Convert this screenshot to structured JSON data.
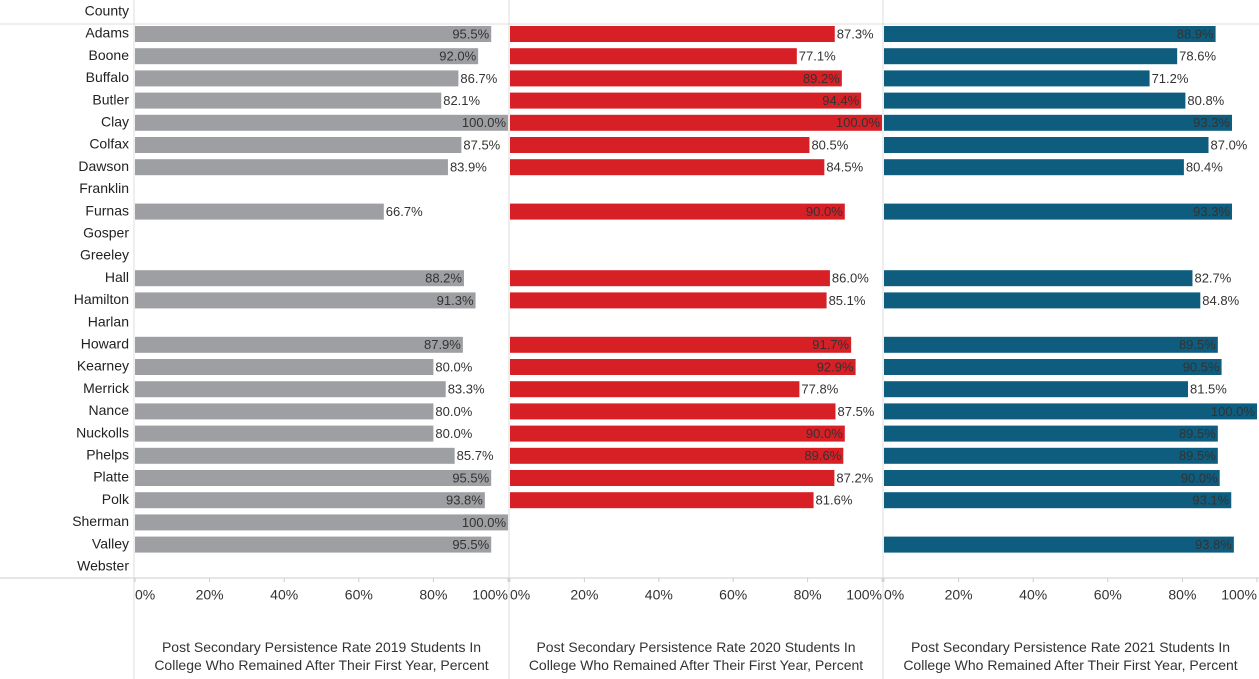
{
  "chart_data": {
    "type": "bar",
    "orientation": "horizontal",
    "row_header": "County",
    "categories": [
      "Adams",
      "Boone",
      "Buffalo",
      "Butler",
      "Clay",
      "Colfax",
      "Dawson",
      "Franklin",
      "Furnas",
      "Gosper",
      "Greeley",
      "Hall",
      "Hamilton",
      "Harlan",
      "Howard",
      "Kearney",
      "Merrick",
      "Nance",
      "Nuckolls",
      "Phelps",
      "Platte",
      "Polk",
      "Sherman",
      "Valley",
      "Webster"
    ],
    "series": [
      {
        "name": "Post Secondary Persistence Rate 2019 Students In College Who Remained After Their First Year, Percent",
        "color": "#9d9fa2",
        "values": [
          95.5,
          92.0,
          86.7,
          82.1,
          100,
          87.5,
          83.9,
          null,
          66.7,
          null,
          null,
          88.2,
          91.3,
          null,
          87.9,
          80.0,
          83.3,
          80.0,
          80.0,
          85.7,
          95.5,
          93.8,
          100,
          95.5,
          null
        ],
        "value_labels": [
          "95.5%",
          "92.0%",
          "86.7%",
          "82.1%",
          "100.0%",
          "87.5%",
          "83.9%",
          null,
          "66.7%",
          null,
          null,
          "88.2%",
          "91.3%",
          null,
          "87.9%",
          "80.0%",
          "83.3%",
          "80.0%",
          "80.0%",
          "85.7%",
          "95.5%",
          "93.8%",
          "100.0%",
          "95.5%",
          null
        ]
      },
      {
        "name": "Post Secondary Persistence Rate 2020 Students In College Who Remained After Their First Year, Percent",
        "color": "#d71f26",
        "values": [
          87.3,
          77.1,
          89.2,
          94.4,
          100,
          80.5,
          84.5,
          null,
          90.0,
          null,
          null,
          86.0,
          85.1,
          null,
          91.7,
          92.9,
          77.8,
          87.5,
          90.0,
          89.6,
          87.2,
          81.6,
          null,
          null,
          null
        ],
        "value_labels": [
          "87.3%",
          "77.1%",
          "89.2%",
          "94.4%",
          "100.0%",
          "80.5%",
          "84.5%",
          null,
          "90.0%",
          null,
          null,
          "86.0%",
          "85.1%",
          null,
          "91.7%",
          "92.9%",
          "77.8%",
          "87.5%",
          "90.0%",
          "89.6%",
          "87.2%",
          "81.6%",
          null,
          null,
          null
        ]
      },
      {
        "name": "Post Secondary Persistence Rate 2021 Students In College Who Remained After Their First Year, Percent",
        "color": "#0e5d7e",
        "values": [
          88.9,
          78.6,
          71.2,
          80.8,
          93.3,
          87.0,
          80.4,
          null,
          93.3,
          null,
          null,
          82.7,
          84.8,
          null,
          89.5,
          90.5,
          81.5,
          100,
          89.5,
          89.5,
          90.0,
          93.1,
          null,
          93.8,
          null
        ],
        "value_labels": [
          "88.9%",
          "78.6%",
          "71.2%",
          "80.8%",
          "93.3%",
          "87.0%",
          "80.4%",
          null,
          "93.3%",
          null,
          null,
          "82.7%",
          "84.8%",
          null,
          "89.5%",
          "90.5%",
          "81.5%",
          "100.0%",
          "89.5%",
          "89.5%",
          "90.0%",
          "93.1%",
          null,
          "93.8%",
          null
        ]
      }
    ],
    "xlim": [
      0,
      100
    ],
    "xticks": [
      {
        "value": 0,
        "label": "0%"
      },
      {
        "value": 20,
        "label": "20%"
      },
      {
        "value": 40,
        "label": "40%"
      },
      {
        "value": 60,
        "label": "60%"
      },
      {
        "value": 80,
        "label": "80%"
      },
      {
        "value": 100,
        "label": "100%"
      }
    ]
  }
}
